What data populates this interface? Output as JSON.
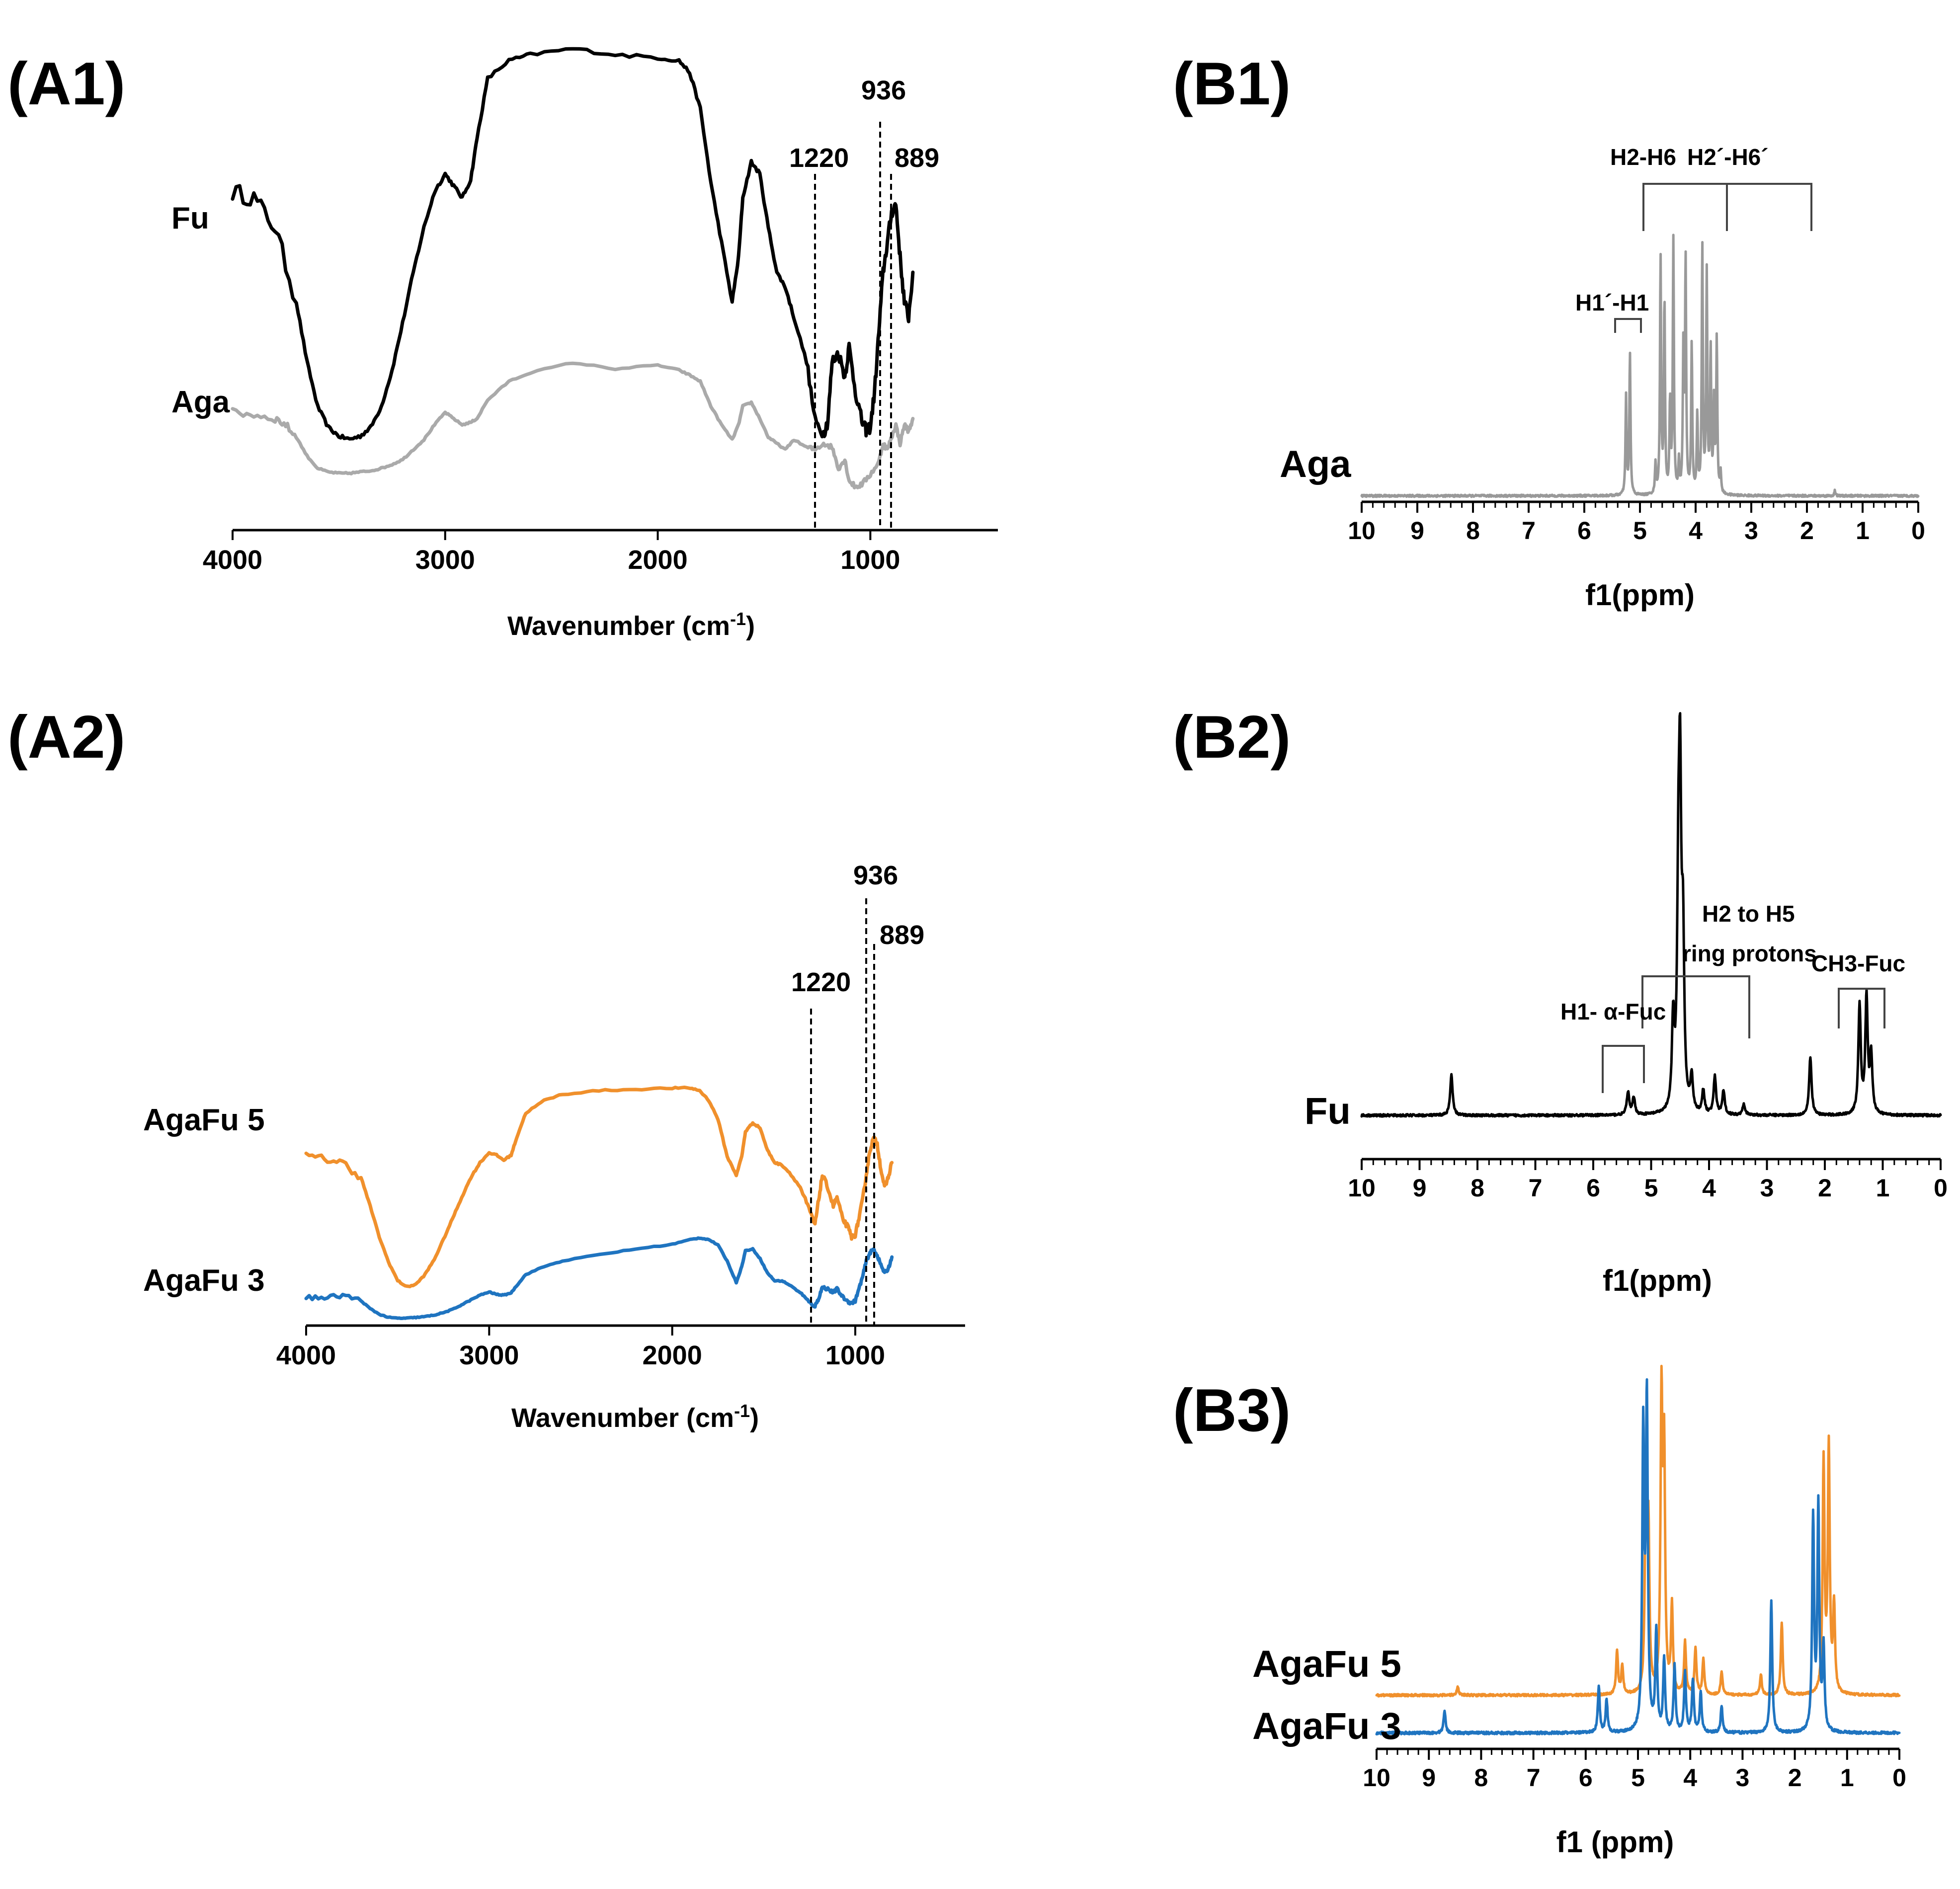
{
  "figure": {
    "panels": [
      "(A1)",
      "(A2)",
      "(B1)",
      "(B2)",
      "(B3)"
    ]
  },
  "chart_data": [
    {
      "id": "A1",
      "type": "line",
      "panel_label": "(A1)",
      "xlabel": "Wavenumber (cm",
      "xlabel_sup": "-1",
      "xlabel_close": ")",
      "xlim": [
        4000,
        400
      ],
      "xticks": [
        4000,
        3000,
        2000,
        1000
      ],
      "annotations": [
        {
          "label": "1220",
          "x": 1220
        },
        {
          "label": "936",
          "x": 936
        },
        {
          "label": "889",
          "x": 889
        }
      ],
      "series": [
        {
          "name": "Fu",
          "color": "#000000",
          "x": [
            4000,
            3900,
            3800,
            3700,
            3650,
            3600,
            3550,
            3500,
            3450,
            3400,
            3350,
            3300,
            3250,
            3200,
            3150,
            3100,
            3050,
            3000,
            2960,
            2920,
            2880,
            2850,
            2800,
            2700,
            2600,
            2400,
            2200,
            2000,
            1900,
            1850,
            1800,
            1750,
            1700,
            1650,
            1620,
            1600,
            1560,
            1520,
            1480,
            1440,
            1400,
            1360,
            1300,
            1260,
            1220,
            1200,
            1180,
            1150,
            1120,
            1100,
            1070,
            1040,
            1020,
            1000,
            980,
            960,
            940,
            920,
            900,
            880,
            860,
            840,
            820,
            800
          ],
          "y": [
            0.82,
            0.8,
            0.7,
            0.45,
            0.25,
            0.1,
            0.03,
            0.0,
            -0.01,
            0.0,
            0.03,
            0.1,
            0.22,
            0.38,
            0.55,
            0.7,
            0.82,
            0.88,
            0.84,
            0.8,
            0.86,
            1.0,
            1.2,
            1.26,
            1.28,
            1.3,
            1.28,
            1.27,
            1.26,
            1.22,
            1.1,
            0.85,
            0.65,
            0.45,
            0.6,
            0.8,
            0.92,
            0.88,
            0.7,
            0.55,
            0.5,
            0.4,
            0.25,
            0.05,
            0.01,
            0.05,
            0.25,
            0.28,
            0.2,
            0.3,
            0.15,
            0.05,
            0.02,
            0.03,
            0.15,
            0.35,
            0.55,
            0.65,
            0.75,
            0.78,
            0.6,
            0.45,
            0.4,
            0.55
          ]
        },
        {
          "name": "Aga",
          "color": "#aaaaaa",
          "x": [
            4000,
            3900,
            3800,
            3750,
            3700,
            3650,
            3600,
            3550,
            3500,
            3450,
            3400,
            3350,
            3300,
            3250,
            3200,
            3150,
            3100,
            3050,
            3000,
            2960,
            2920,
            2880,
            2850,
            2800,
            2700,
            2600,
            2400,
            2200,
            2000,
            1900,
            1850,
            1800,
            1750,
            1700,
            1650,
            1620,
            1600,
            1560,
            1520,
            1480,
            1440,
            1400,
            1360,
            1300,
            1260,
            1220,
            1180,
            1150,
            1120,
            1100,
            1070,
            1040,
            1000,
            960,
            940,
            920,
            900,
            880,
            860,
            840,
            820,
            800
          ],
          "y": [
            0.0,
            -0.02,
            -0.05,
            -0.1,
            -0.2,
            -0.35,
            -0.45,
            -0.48,
            -0.49,
            -0.49,
            -0.48,
            -0.47,
            -0.45,
            -0.42,
            -0.38,
            -0.3,
            -0.22,
            -0.1,
            0.0,
            -0.05,
            -0.1,
            -0.08,
            -0.05,
            0.1,
            0.25,
            0.32,
            0.4,
            0.35,
            0.38,
            0.34,
            0.3,
            0.25,
            0.05,
            -0.1,
            -0.22,
            -0.1,
            0.05,
            0.08,
            -0.05,
            -0.2,
            -0.25,
            -0.3,
            -0.22,
            -0.28,
            -0.3,
            -0.25,
            -0.28,
            -0.45,
            -0.38,
            -0.55,
            -0.6,
            -0.58,
            -0.5,
            -0.4,
            -0.25,
            -0.3,
            -0.2,
            -0.1,
            -0.25,
            -0.1,
            -0.15,
            -0.05
          ]
        }
      ]
    },
    {
      "id": "A2",
      "type": "line",
      "panel_label": "(A2)",
      "xlabel": "Wavenumber (cm",
      "xlabel_sup": "-1",
      "xlabel_close": ")",
      "xlim": [
        4000,
        400
      ],
      "xticks": [
        4000,
        3000,
        2000,
        1000
      ],
      "annotations": [
        {
          "label": "1220",
          "x": 1220
        },
        {
          "label": "936",
          "x": 936
        },
        {
          "label": "889",
          "x": 889
        }
      ],
      "series": [
        {
          "name": "AgaFu 5",
          "color": "#f0902c",
          "x": [
            4000,
            3900,
            3800,
            3700,
            3650,
            3600,
            3550,
            3500,
            3450,
            3400,
            3350,
            3300,
            3250,
            3200,
            3150,
            3100,
            3050,
            3000,
            2960,
            2920,
            2880,
            2850,
            2800,
            2700,
            2600,
            2400,
            2200,
            2000,
            1900,
            1850,
            1800,
            1750,
            1700,
            1650,
            1620,
            1600,
            1560,
            1520,
            1480,
            1440,
            1400,
            1360,
            1300,
            1260,
            1220,
            1200,
            1180,
            1150,
            1120,
            1100,
            1070,
            1040,
            1020,
            1000,
            980,
            960,
            940,
            920,
            900,
            880,
            860,
            840,
            820,
            800
          ],
          "y": [
            0.95,
            0.93,
            0.9,
            0.78,
            0.55,
            0.3,
            0.1,
            -0.05,
            -0.1,
            -0.08,
            0.0,
            0.12,
            0.28,
            0.45,
            0.62,
            0.78,
            0.9,
            0.98,
            0.96,
            0.92,
            0.96,
            1.1,
            1.3,
            1.4,
            1.45,
            1.48,
            1.49,
            1.5,
            1.5,
            1.48,
            1.4,
            1.25,
            0.95,
            0.8,
            0.95,
            1.15,
            1.22,
            1.18,
            1.0,
            0.9,
            0.88,
            0.82,
            0.7,
            0.55,
            0.4,
            0.6,
            0.8,
            0.7,
            0.55,
            0.62,
            0.45,
            0.38,
            0.3,
            0.32,
            0.45,
            0.6,
            0.8,
            1.0,
            1.1,
            1.05,
            0.85,
            0.7,
            0.78,
            0.9
          ]
        },
        {
          "name": "AgaFu 3",
          "color": "#1f74c0",
          "x": [
            4000,
            3900,
            3800,
            3700,
            3650,
            3600,
            3550,
            3500,
            3450,
            3400,
            3350,
            3300,
            3250,
            3200,
            3150,
            3100,
            3050,
            3000,
            2960,
            2920,
            2880,
            2850,
            2800,
            2700,
            2600,
            2400,
            2200,
            2000,
            1900,
            1850,
            1800,
            1750,
            1700,
            1650,
            1620,
            1600,
            1560,
            1520,
            1480,
            1440,
            1400,
            1360,
            1300,
            1260,
            1220,
            1200,
            1180,
            1150,
            1120,
            1100,
            1070,
            1040,
            1020,
            1000,
            980,
            960,
            940,
            920,
            900,
            880,
            860,
            840,
            820,
            800
          ],
          "y": [
            0.0,
            -0.02,
            0.02,
            -0.05,
            -0.15,
            -0.22,
            -0.26,
            -0.27,
            -0.27,
            -0.26,
            -0.25,
            -0.23,
            -0.2,
            -0.16,
            -0.1,
            -0.04,
            0.02,
            0.06,
            0.03,
            0.02,
            0.05,
            0.14,
            0.28,
            0.38,
            0.45,
            0.53,
            0.6,
            0.66,
            0.72,
            0.74,
            0.72,
            0.65,
            0.45,
            0.18,
            0.38,
            0.58,
            0.6,
            0.48,
            0.3,
            0.2,
            0.2,
            0.15,
            0.05,
            -0.05,
            -0.12,
            -0.02,
            0.12,
            0.1,
            0.05,
            0.1,
            0.0,
            -0.06,
            -0.08,
            -0.05,
            0.1,
            0.25,
            0.45,
            0.55,
            0.6,
            0.52,
            0.4,
            0.3,
            0.35,
            0.5
          ]
        }
      ]
    },
    {
      "id": "B1",
      "type": "line",
      "panel_label": "(B1)",
      "xlabel": "f1(ppm)",
      "xlim": [
        10,
        0
      ],
      "xticks": [
        10,
        9,
        8,
        7,
        6,
        5,
        4,
        3,
        2,
        1,
        0
      ],
      "bracket_labels": [
        "H2-H6",
        "H2´-H6´",
        "H1´-H1"
      ],
      "series": [
        {
          "name": "Aga",
          "color": "#999999",
          "peaks": [
            [
              5.25,
              0.38
            ],
            [
              5.18,
              0.55
            ],
            [
              4.72,
              0.12
            ],
            [
              4.63,
              0.92
            ],
            [
              4.56,
              0.75
            ],
            [
              4.46,
              0.35
            ],
            [
              4.4,
              0.98
            ],
            [
              4.3,
              0.12
            ],
            [
              4.22,
              0.55
            ],
            [
              4.18,
              0.9
            ],
            [
              4.07,
              0.58
            ],
            [
              3.97,
              0.3
            ],
            [
              3.88,
              0.96
            ],
            [
              3.8,
              0.85
            ],
            [
              3.73,
              0.55
            ],
            [
              3.67,
              0.35
            ],
            [
              3.62,
              0.6
            ],
            [
              3.55,
              0.08
            ],
            [
              1.5,
              0.02
            ]
          ]
        }
      ]
    },
    {
      "id": "B2",
      "type": "line",
      "panel_label": "(B2)",
      "xlabel": "f1(ppm)",
      "xlim": [
        10,
        0
      ],
      "xticks": [
        10,
        9,
        8,
        7,
        6,
        5,
        4,
        3,
        2,
        1,
        0
      ],
      "bracket_labels": [
        "H1- α-Fuc",
        "H2 to H5",
        "ring protons",
        "CH3-Fuc"
      ],
      "series": [
        {
          "name": "Fu",
          "color": "#000000",
          "peaks": [
            [
              8.45,
              0.14
            ],
            [
              5.4,
              0.08
            ],
            [
              5.3,
              0.06
            ],
            [
              4.62,
              0.3
            ],
            [
              4.53,
              0.65
            ],
            [
              4.5,
              1.0
            ],
            [
              4.45,
              0.55
            ],
            [
              4.3,
              0.12
            ],
            [
              4.1,
              0.08
            ],
            [
              3.9,
              0.13
            ],
            [
              3.75,
              0.08
            ],
            [
              3.4,
              0.04
            ],
            [
              2.25,
              0.2
            ],
            [
              1.4,
              0.38
            ],
            [
              1.28,
              0.4
            ],
            [
              1.2,
              0.2
            ]
          ]
        }
      ]
    },
    {
      "id": "B3",
      "type": "line",
      "panel_label": "(B3)",
      "xlabel": "f1 (ppm)",
      "xlim": [
        10,
        0
      ],
      "xticks": [
        10,
        9,
        8,
        7,
        6,
        5,
        4,
        3,
        2,
        1,
        0
      ],
      "series": [
        {
          "name": "AgaFu 5",
          "color": "#f0902c",
          "peaks": [
            [
              8.45,
              0.03
            ],
            [
              5.4,
              0.15
            ],
            [
              5.3,
              0.1
            ],
            [
              4.85,
              0.7
            ],
            [
              4.8,
              0.55
            ],
            [
              4.55,
              1.0
            ],
            [
              4.5,
              0.8
            ],
            [
              4.35,
              0.3
            ],
            [
              4.1,
              0.18
            ],
            [
              3.9,
              0.16
            ],
            [
              3.75,
              0.12
            ],
            [
              3.4,
              0.08
            ],
            [
              2.65,
              0.07
            ],
            [
              2.25,
              0.25
            ],
            [
              1.45,
              0.8
            ],
            [
              1.35,
              0.85
            ],
            [
              1.25,
              0.3
            ]
          ]
        },
        {
          "name": "AgaFu 3",
          "color": "#1f74c0",
          "peaks": [
            [
              8.7,
              0.07
            ],
            [
              5.75,
              0.14
            ],
            [
              5.6,
              0.1
            ],
            [
              4.9,
              0.9
            ],
            [
              4.83,
              1.0
            ],
            [
              4.65,
              0.3
            ],
            [
              4.5,
              0.22
            ],
            [
              4.3,
              0.2
            ],
            [
              4.1,
              0.18
            ],
            [
              3.95,
              0.16
            ],
            [
              3.8,
              0.12
            ],
            [
              3.4,
              0.08
            ],
            [
              2.45,
              0.4
            ],
            [
              1.65,
              0.65
            ],
            [
              1.55,
              0.68
            ],
            [
              1.45,
              0.25
            ]
          ]
        }
      ]
    }
  ]
}
